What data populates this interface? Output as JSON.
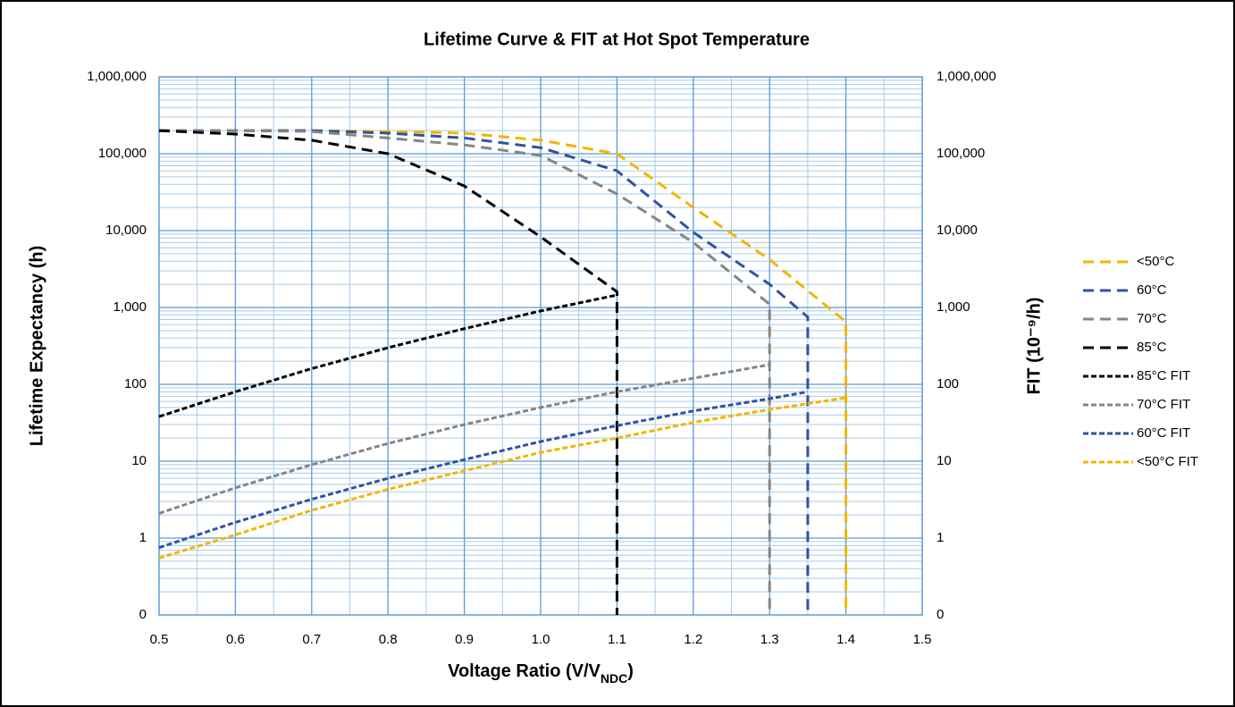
{
  "chart_data": {
    "type": "line",
    "title": "Lifetime Curve & FIT at Hot Spot Temperature",
    "x_label": [
      "Voltage Ratio (V/V",
      "NDC",
      ")"
    ],
    "y_label": "Lifetime Expectancy (h)",
    "y2_label": "FIT (10⁻⁹/h)",
    "yscale": "log",
    "grid": true,
    "minor_grid": true,
    "legend": "right",
    "xlim": [
      0.5,
      1.5
    ],
    "xticks": [
      0.5,
      0.6,
      0.7,
      0.8,
      0.9,
      {
        "value": 1,
        "label": "1.0"
      },
      1.1,
      1.2,
      1.3,
      1.4,
      1.5
    ],
    "ylim": [
      0.1,
      1000000
    ],
    "yticks": [
      {
        "value": 0.1,
        "label": "0"
      },
      1,
      10,
      100,
      {
        "value": 1000,
        "label": "1,000"
      },
      {
        "value": 10000,
        "label": "10,000"
      },
      {
        "value": 100000,
        "label": "100,000"
      },
      {
        "value": 1000000,
        "label": "1,000,000"
      }
    ],
    "y2lim": [
      0.1,
      1000000
    ],
    "y2ticks": [
      {
        "value": 0.1,
        "label": "0"
      },
      1,
      10,
      100,
      {
        "value": 1000,
        "label": "1,000"
      },
      {
        "value": 10000,
        "label": "10,000"
      },
      {
        "value": 100000,
        "label": "100,000"
      },
      {
        "value": 1000000,
        "label": "1,000,000"
      }
    ],
    "series": [
      {
        "name": "<50°C",
        "color": "#f2b600",
        "dash": "long",
        "x": [
          0.5,
          0.6,
          0.7,
          0.8,
          0.9,
          1.0,
          1.1,
          1.2,
          1.3,
          1.4,
          1.4
        ],
        "values": [
          200000,
          200000,
          200000,
          195000,
          185000,
          150000,
          100000,
          20000,
          4200,
          650,
          0.1
        ]
      },
      {
        "name": "60°C",
        "color": "#3152a0",
        "dash": "long",
        "x": [
          0.5,
          0.6,
          0.7,
          0.8,
          0.9,
          1.0,
          1.1,
          1.2,
          1.3,
          1.35,
          1.35
        ],
        "values": [
          200000,
          200000,
          200000,
          185000,
          160000,
          120000,
          60000,
          9500,
          2000,
          750,
          0.1
        ]
      },
      {
        "name": "70°C",
        "color": "#858585",
        "dash": "long",
        "x": [
          0.5,
          0.6,
          0.7,
          0.8,
          0.9,
          1.0,
          1.1,
          1.2,
          1.3,
          1.3
        ],
        "values": [
          200000,
          200000,
          195000,
          160000,
          130000,
          95000,
          30000,
          7000,
          1100,
          0.1
        ]
      },
      {
        "name": "85°C",
        "color": "#000000",
        "dash": "long",
        "x": [
          0.5,
          0.6,
          0.7,
          0.8,
          0.9,
          1.0,
          1.1,
          1.1
        ],
        "values": [
          200000,
          180000,
          150000,
          100000,
          38000,
          8300,
          1600,
          0.1
        ]
      },
      {
        "name": "85°C FIT",
        "color": "#000000",
        "dash": "short",
        "axis": "y2",
        "x": [
          0.5,
          0.6,
          0.7,
          0.8,
          0.9,
          1.0,
          1.1
        ],
        "values": [
          38,
          80,
          160,
          300,
          530,
          900,
          1450
        ]
      },
      {
        "name": "70°C FIT",
        "color": "#858585",
        "dash": "short",
        "axis": "y2",
        "x": [
          0.5,
          0.6,
          0.7,
          0.8,
          0.9,
          1.0,
          1.1,
          1.2,
          1.3
        ],
        "values": [
          2.1,
          4.5,
          9,
          17,
          30,
          50,
          80,
          120,
          180
        ]
      },
      {
        "name": "60°C FIT",
        "color": "#3152a0",
        "dash": "short",
        "axis": "y2",
        "x": [
          0.5,
          0.6,
          0.7,
          0.8,
          0.9,
          1.0,
          1.1,
          1.2,
          1.3,
          1.35
        ],
        "values": [
          0.75,
          1.6,
          3.2,
          6,
          10.5,
          18,
          29,
          45,
          65,
          80
        ]
      },
      {
        "name": "<50°C FIT",
        "color": "#f2b600",
        "dash": "short",
        "axis": "y2",
        "x": [
          0.5,
          0.6,
          0.7,
          0.8,
          0.9,
          1.0,
          1.1,
          1.2,
          1.3,
          1.4
        ],
        "values": [
          0.55,
          1.1,
          2.3,
          4.3,
          7.5,
          13,
          20,
          32,
          47,
          67
        ]
      }
    ]
  }
}
